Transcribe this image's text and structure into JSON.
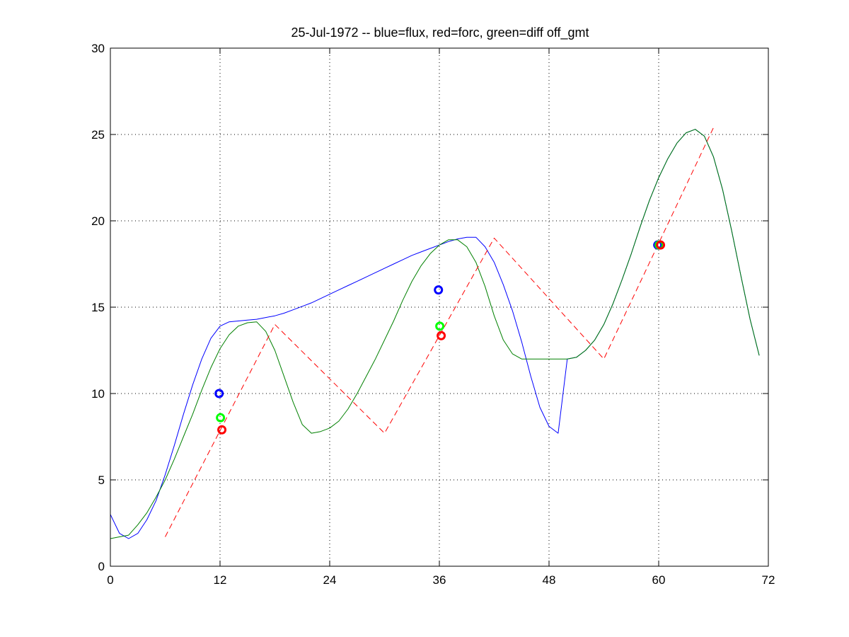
{
  "chart_data": {
    "type": "line",
    "title": "25-Jul-1972 -- blue=flux, red=forc, green=diff off_gmt",
    "xlabel": "",
    "ylabel": "",
    "xlim": [
      0,
      72
    ],
    "ylim": [
      0,
      30
    ],
    "x_ticks": [
      0,
      12,
      24,
      36,
      48,
      60,
      72
    ],
    "y_ticks": [
      0,
      5,
      10,
      15,
      20,
      25,
      30
    ],
    "grid": true,
    "legend": "none",
    "series": [
      {
        "color": "#0000ff",
        "style": "solid",
        "points": [
          [
            0,
            3.0
          ],
          [
            1,
            1.9
          ],
          [
            2,
            1.6
          ],
          [
            3,
            1.9
          ],
          [
            4,
            2.7
          ],
          [
            5,
            3.8
          ],
          [
            6,
            5.3
          ],
          [
            7,
            7.0
          ],
          [
            8,
            8.8
          ],
          [
            9,
            10.5
          ],
          [
            10,
            12.0
          ],
          [
            11,
            13.2
          ],
          [
            12,
            13.9
          ],
          [
            13,
            14.15
          ],
          [
            14,
            14.2
          ],
          [
            15,
            14.25
          ],
          [
            16,
            14.3
          ],
          [
            17,
            14.4
          ],
          [
            18,
            14.5
          ],
          [
            19,
            14.65
          ],
          [
            20,
            14.85
          ],
          [
            21,
            15.05
          ],
          [
            22,
            15.25
          ],
          [
            23,
            15.5
          ],
          [
            24,
            15.75
          ],
          [
            25,
            16.0
          ],
          [
            26,
            16.25
          ],
          [
            27,
            16.5
          ],
          [
            28,
            16.75
          ],
          [
            29,
            17.0
          ],
          [
            30,
            17.25
          ],
          [
            31,
            17.5
          ],
          [
            32,
            17.75
          ],
          [
            33,
            18.0
          ],
          [
            34,
            18.2
          ],
          [
            35,
            18.4
          ],
          [
            36,
            18.6
          ],
          [
            37,
            18.8
          ],
          [
            38,
            18.95
          ],
          [
            39,
            19.05
          ],
          [
            40,
            19.05
          ],
          [
            41,
            18.5
          ],
          [
            42,
            17.6
          ],
          [
            43,
            16.3
          ],
          [
            44,
            14.8
          ],
          [
            45,
            13.0
          ],
          [
            46,
            11.0
          ],
          [
            47,
            9.2
          ],
          [
            48,
            8.1
          ],
          [
            49,
            7.7
          ],
          [
            50,
            12.0
          ],
          [
            51,
            12.1
          ],
          [
            52,
            12.5
          ],
          [
            53,
            13.1
          ],
          [
            54,
            14.0
          ],
          [
            55,
            15.2
          ],
          [
            56,
            16.6
          ],
          [
            57,
            18.1
          ],
          [
            58,
            19.7
          ],
          [
            59,
            21.2
          ],
          [
            60,
            22.5
          ],
          [
            61,
            23.6
          ],
          [
            62,
            24.5
          ],
          [
            63,
            25.1
          ],
          [
            64,
            25.3
          ],
          [
            65,
            24.9
          ],
          [
            66,
            23.7
          ],
          [
            67,
            21.8
          ],
          [
            68,
            19.4
          ],
          [
            69,
            16.8
          ],
          [
            70,
            14.3
          ],
          [
            71,
            12.2
          ]
        ]
      },
      {
        "color": "#008000",
        "style": "solid",
        "points": [
          [
            0,
            1.6
          ],
          [
            1,
            1.7
          ],
          [
            2,
            1.8
          ],
          [
            3,
            2.4
          ],
          [
            4,
            3.1
          ],
          [
            5,
            4.0
          ],
          [
            6,
            5.0
          ],
          [
            7,
            6.2
          ],
          [
            8,
            7.5
          ],
          [
            9,
            8.8
          ],
          [
            10,
            10.2
          ],
          [
            11,
            11.5
          ],
          [
            12,
            12.6
          ],
          [
            13,
            13.4
          ],
          [
            14,
            13.9
          ],
          [
            15,
            14.1
          ],
          [
            16,
            14.15
          ],
          [
            17,
            13.6
          ],
          [
            18,
            12.5
          ],
          [
            19,
            11.0
          ],
          [
            20,
            9.5
          ],
          [
            21,
            8.2
          ],
          [
            22,
            7.7
          ],
          [
            23,
            7.8
          ],
          [
            24,
            8.0
          ],
          [
            25,
            8.4
          ],
          [
            26,
            9.1
          ],
          [
            27,
            10.0
          ],
          [
            28,
            11.0
          ],
          [
            29,
            12.0
          ],
          [
            30,
            13.1
          ],
          [
            31,
            14.2
          ],
          [
            32,
            15.4
          ],
          [
            33,
            16.5
          ],
          [
            34,
            17.4
          ],
          [
            35,
            18.1
          ],
          [
            36,
            18.6
          ],
          [
            37,
            18.9
          ],
          [
            38,
            18.9
          ],
          [
            39,
            18.5
          ],
          [
            40,
            17.6
          ],
          [
            41,
            16.2
          ],
          [
            42,
            14.5
          ],
          [
            43,
            13.1
          ],
          [
            44,
            12.3
          ],
          [
            45,
            12.0
          ],
          [
            50,
            12.0
          ],
          [
            51,
            12.1
          ],
          [
            52,
            12.5
          ],
          [
            53,
            13.1
          ],
          [
            54,
            14.0
          ],
          [
            55,
            15.2
          ],
          [
            56,
            16.6
          ],
          [
            57,
            18.1
          ],
          [
            58,
            19.7
          ],
          [
            59,
            21.2
          ],
          [
            60,
            22.5
          ],
          [
            61,
            23.6
          ],
          [
            62,
            24.5
          ],
          [
            63,
            25.1
          ],
          [
            64,
            25.3
          ],
          [
            65,
            24.9
          ],
          [
            66,
            23.7
          ],
          [
            67,
            21.8
          ],
          [
            68,
            19.4
          ],
          [
            69,
            16.8
          ],
          [
            70,
            14.3
          ],
          [
            71,
            12.2
          ]
        ]
      },
      {
        "color": "#ff0000",
        "style": "dashed",
        "points": [
          [
            6,
            1.7
          ],
          [
            18,
            14.0
          ],
          [
            30,
            7.7
          ],
          [
            42,
            19.0
          ],
          [
            54,
            12.0
          ],
          [
            66,
            25.4
          ]
        ]
      }
    ],
    "markers": [
      {
        "color": "#0000ff",
        "x": 11.9,
        "y": 10.0
      },
      {
        "color": "#00ff00",
        "x": 12.05,
        "y": 8.6
      },
      {
        "color": "#ff0000",
        "x": 12.2,
        "y": 7.9
      },
      {
        "color": "#0000ff",
        "x": 35.9,
        "y": 16.0
      },
      {
        "color": "#00ff00",
        "x": 36.05,
        "y": 13.9
      },
      {
        "color": "#ff0000",
        "x": 36.2,
        "y": 13.35
      },
      {
        "color": "#0000ff",
        "x": 59.9,
        "y": 18.6
      },
      {
        "color": "#00ff00",
        "x": 60.05,
        "y": 18.6
      },
      {
        "color": "#ff0000",
        "x": 60.2,
        "y": 18.6
      }
    ]
  }
}
